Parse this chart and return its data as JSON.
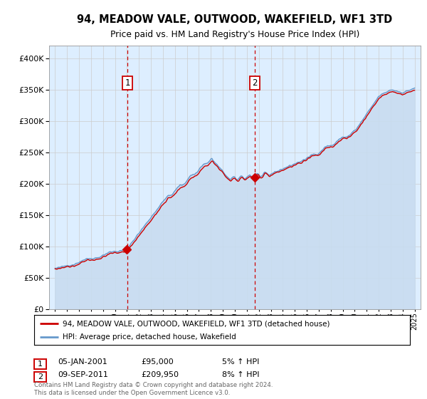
{
  "title": "94, MEADOW VALE, OUTWOOD, WAKEFIELD, WF1 3TD",
  "subtitle": "Price paid vs. HM Land Registry's House Price Index (HPI)",
  "sale1_price": 95000,
  "sale1_t": 2001.04,
  "sale1_date_str": "05-JAN-2001",
  "sale1_pct": "5% ↑ HPI",
  "sale2_price": 209950,
  "sale2_t": 2011.67,
  "sale2_date_str": "09-SEP-2011",
  "sale2_pct": "8% ↑ HPI",
  "legend_line1": "94, MEADOW VALE, OUTWOOD, WAKEFIELD, WF1 3TD (detached house)",
  "legend_line2": "HPI: Average price, detached house, Wakefield",
  "footer": "Contains HM Land Registry data © Crown copyright and database right 2024.\nThis data is licensed under the Open Government Licence v3.0.",
  "ylim_max": 420000,
  "ytick_step": 50000,
  "xstart": 1995,
  "xend": 2025,
  "hpi_color": "#6699cc",
  "price_color": "#cc0000",
  "bg_color": "#ddeeff",
  "fill_color": "#c8dcf0",
  "grid_color": "#cccccc",
  "box_color": "#cc0000"
}
